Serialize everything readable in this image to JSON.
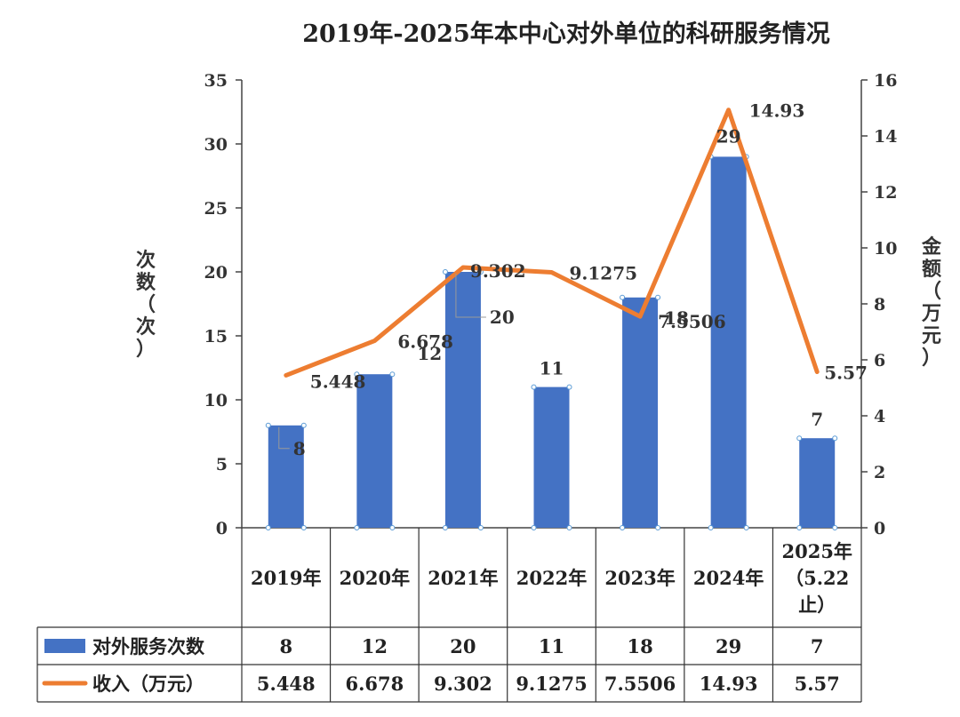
{
  "chart_data": {
    "type": "bar",
    "title": "2019年-2025年本中心对外单位的科研服务情况",
    "categories": [
      "2019年",
      "2020年",
      "2021年",
      "2022年",
      "2023年",
      "2024年",
      "2025年（5.22止）"
    ],
    "categories_lines": [
      [
        "2019年"
      ],
      [
        "2020年"
      ],
      [
        "2021年"
      ],
      [
        "2022年"
      ],
      [
        "2023年"
      ],
      [
        "2024年"
      ],
      [
        "2025年",
        "（5.22",
        "止）"
      ]
    ],
    "y_left": {
      "label_chars": [
        "次",
        "数",
        "（",
        "次",
        "）"
      ],
      "lim": [
        0,
        35
      ],
      "ticks": [
        0,
        5,
        10,
        15,
        20,
        25,
        30,
        35
      ]
    },
    "y_right": {
      "label_chars": [
        "金",
        "额",
        "（",
        "万",
        "元",
        "）"
      ],
      "lim": [
        0,
        16
      ],
      "ticks": [
        0,
        2,
        4,
        6,
        8,
        10,
        12,
        14,
        16
      ]
    },
    "grid": false,
    "legend": "bottom data table",
    "series": [
      {
        "name": "对外服务次数",
        "type": "bar",
        "axis": "left",
        "color": "#4472C4",
        "values": [
          8,
          12,
          20,
          11,
          18,
          29,
          7
        ],
        "labels": [
          "8",
          "12",
          "20",
          "11",
          "18",
          "29",
          "7"
        ]
      },
      {
        "name": "收入（万元）",
        "type": "line",
        "axis": "right",
        "color": "#ED7D31",
        "values": [
          5.448,
          6.678,
          9.302,
          9.1275,
          7.5506,
          14.93,
          5.57
        ],
        "labels": [
          "5.448",
          "6.678",
          "9.302",
          "9.1275",
          "7.5506",
          "14.93",
          "5.57"
        ]
      }
    ]
  }
}
